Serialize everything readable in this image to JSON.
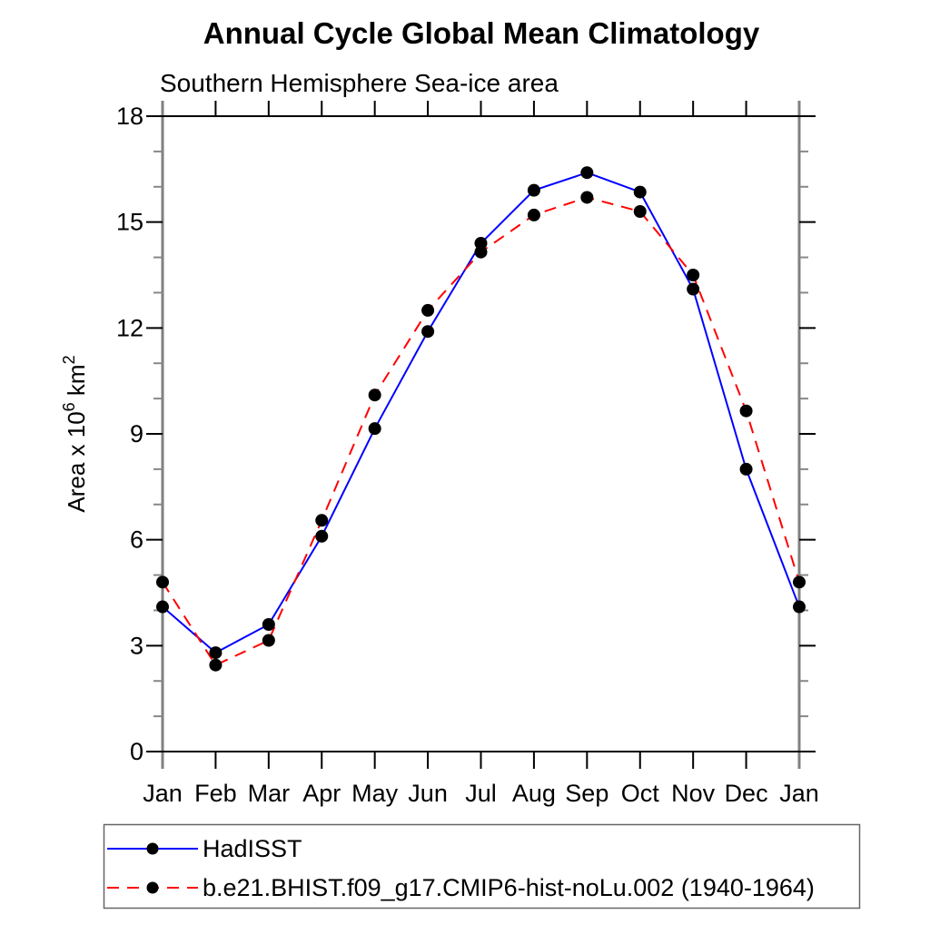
{
  "page": {
    "background": "#ffffff"
  },
  "chart_data": {
    "type": "line",
    "title": "Annual Cycle Global Mean Climatology",
    "subtitle": "Southern Hemisphere Sea-ice area",
    "ylabel": "Area x 10^6 km^2",
    "ylabel_parts": {
      "base1": "Area x 10",
      "sup1": "6",
      "base2": " km",
      "sup2": "2"
    },
    "categories": [
      "Jan",
      "Feb",
      "Mar",
      "Apr",
      "May",
      "Jun",
      "Jul",
      "Aug",
      "Sep",
      "Oct",
      "Nov",
      "Dec",
      "Jan"
    ],
    "xlabel": "",
    "ylim": [
      0,
      18
    ],
    "y_major_step": 3,
    "y_minor_step": 1,
    "y_major_tick_labels": [
      "0",
      "3",
      "6",
      "9",
      "12",
      "15",
      "18"
    ],
    "grid": false,
    "legend_position": "bottom-left-box",
    "marker": "filled-circle",
    "marker_color": "#000000",
    "axis_colors": {
      "frame_horizontal": "#000000",
      "frame_vertical": "#808080",
      "major_tick": "#000000",
      "minor_tick": "#888888"
    },
    "series": [
      {
        "name": "HadISST",
        "color": "#0000ff",
        "line_style": "solid",
        "values": [
          4.1,
          2.8,
          3.6,
          6.1,
          9.15,
          11.9,
          14.4,
          15.9,
          16.4,
          15.85,
          13.1,
          8.0,
          4.1
        ]
      },
      {
        "name": "b.e21.BHIST.f09_g17.CMIP6-hist-noLu.002 (1940-1964)",
        "color": "#ff0000",
        "line_style": "dashed",
        "values": [
          4.8,
          2.45,
          3.15,
          6.55,
          10.1,
          12.5,
          14.15,
          15.2,
          15.7,
          15.3,
          13.5,
          9.65,
          4.8
        ]
      }
    ]
  }
}
